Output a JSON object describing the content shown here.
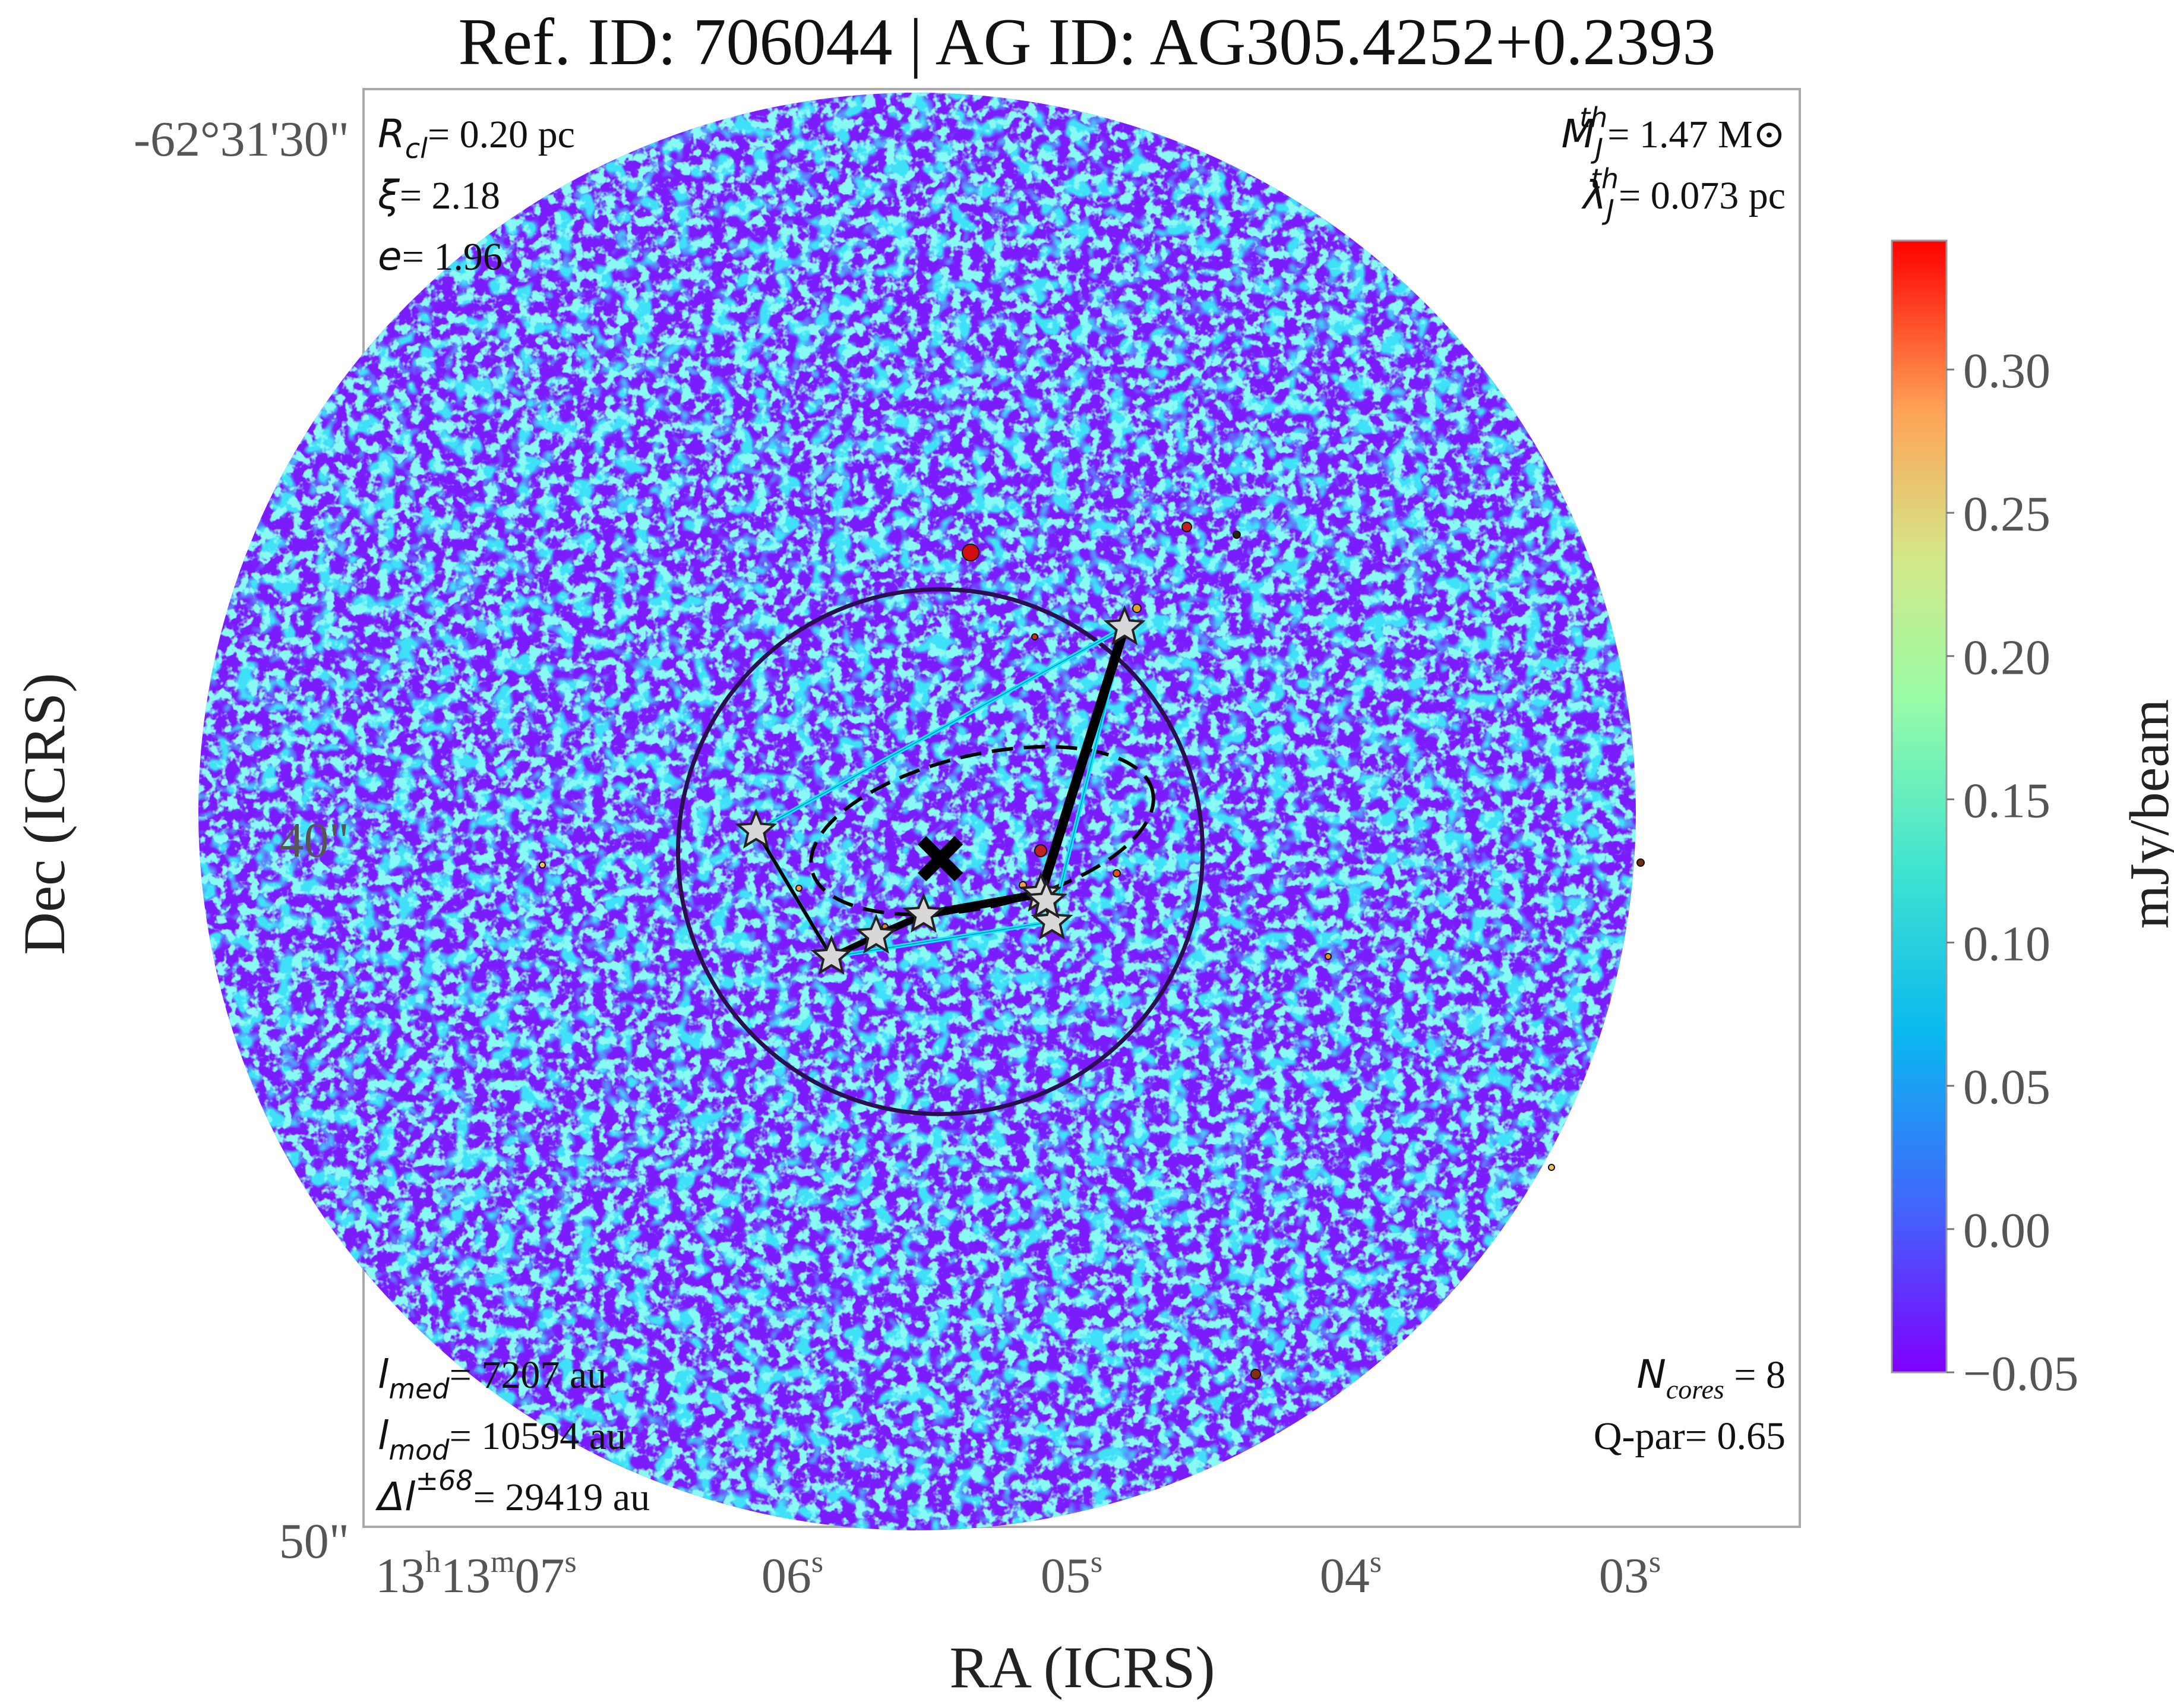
{
  "title": "Ref. ID: 706044 | AG ID: AG305.4252+0.2393",
  "chart_data": {
    "type": "heatmap",
    "colormap": "rainbow",
    "image_shape": "circular",
    "xlabel": "RA (ICRS)",
    "ylabel": "Dec (ICRS)",
    "x_ticks": [
      {
        "h": "13",
        "m": "13",
        "s": "07",
        "value_s": 7
      },
      {
        "s": "06",
        "value_s": 6
      },
      {
        "s": "05",
        "value_s": 5
      },
      {
        "s": "04",
        "value_s": 4
      },
      {
        "s": "03",
        "value_s": 3
      }
    ],
    "x_tick_superscripts": {
      "h": "h",
      "m": "m",
      "s": "s"
    },
    "y_ticks": [
      {
        "label": "-62°31'30\"",
        "value_arcsec": 30
      },
      {
        "label": "40\"",
        "value_arcsec": 40
      },
      {
        "label": "50\"",
        "value_arcsec": 50
      }
    ],
    "colorbar": {
      "label": "mJy/beam",
      "vmin": -0.05,
      "vmax": 0.345,
      "ticks": [
        "0.30",
        "0.25",
        "0.20",
        "0.15",
        "0.10",
        "0.05",
        "0.00",
        "−0.05"
      ],
      "tick_values": [
        0.3,
        0.25,
        0.2,
        0.15,
        0.1,
        0.05,
        0.0,
        -0.05
      ]
    },
    "annotations": {
      "top_left": [
        {
          "sym": "R",
          "sub": "cl",
          "text": "= 0.20 pc"
        },
        {
          "sym": "ξ",
          "text": "= 2.18"
        },
        {
          "sym": "e",
          "text": "= 1.96"
        }
      ],
      "top_right": [
        {
          "sym": "M",
          "sub": "J",
          "sup": "th",
          "text": "= 1.47 M⊙"
        },
        {
          "sym": "λ",
          "sub": "J",
          "sup": "th",
          "text": "= 0.073 pc"
        }
      ],
      "bottom_left": [
        {
          "sym": "l",
          "sub": "med",
          "text": "= 7207 au"
        },
        {
          "sym": "l",
          "sub": "mod",
          "text": "= 10594 au"
        },
        {
          "sym": "Δl",
          "sup": "±68",
          "text": "= 29419 au"
        }
      ],
      "bottom_right": [
        {
          "sym": "N",
          "sub": "cores",
          "text": " = 8"
        },
        {
          "sym": "Q-par",
          "text": "= 0.65"
        }
      ]
    },
    "cores": [
      {
        "ra_s": 4.81,
        "dec_arcsec": 37.0
      },
      {
        "ra_s": 6.13,
        "dec_arcsec": 39.9
      },
      {
        "ra_s": 5.86,
        "dec_arcsec": 41.7
      },
      {
        "ra_s": 5.7,
        "dec_arcsec": 41.4
      },
      {
        "ra_s": 5.53,
        "dec_arcsec": 41.1
      },
      {
        "ra_s": 5.11,
        "dec_arcsec": 40.8
      },
      {
        "ra_s": 5.07,
        "dec_arcsec": 41.2
      },
      {
        "ra_s": 5.09,
        "dec_arcsec": 40.9
      }
    ],
    "centroid": {
      "ra_s": 5.47,
      "dec_arcsec": 40.3
    },
    "mst_edges": [
      [
        1,
        2
      ],
      [
        2,
        3
      ],
      [
        3,
        4
      ],
      [
        4,
        5
      ],
      [
        5,
        0
      ],
      [
        5,
        6
      ],
      [
        5,
        7
      ]
    ],
    "convex_hull": [
      0,
      1,
      2,
      6,
      0
    ],
    "cluster_circle": {
      "ra_s": 5.47,
      "dec_arcsec": 40.2,
      "radius_arcsec": 6.9
    },
    "cores_ellipse": {
      "ra_s": 5.32,
      "dec_arcsec": 39.9,
      "a_arcsec": 4.6,
      "b_arcsec": 2.0,
      "angle_deg": -13
    }
  }
}
